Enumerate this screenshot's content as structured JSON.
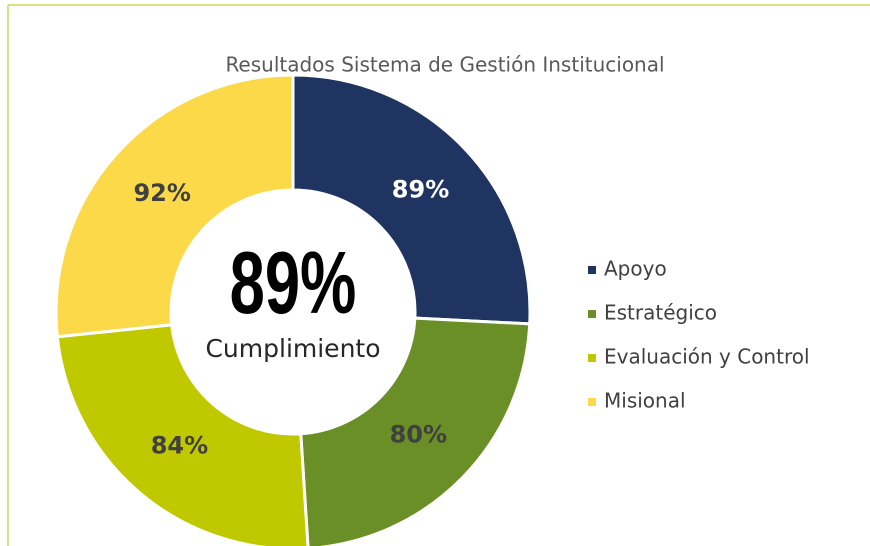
{
  "chart_data": {
    "type": "donut",
    "title": "Resultados Sistema de Gestión Institucional",
    "center_label": "89%",
    "center_sublabel": "Cumplimiento",
    "categories": [
      "Apoyo",
      "Estratégico",
      "Evaluación y Control",
      "Misional"
    ],
    "values": [
      89,
      80,
      84,
      92
    ],
    "value_labels": [
      "89%",
      "80%",
      "84%",
      "92%"
    ],
    "colors": [
      "#1f3461",
      "#6a8f26",
      "#c0c800",
      "#fbd948"
    ],
    "legend": "right"
  }
}
